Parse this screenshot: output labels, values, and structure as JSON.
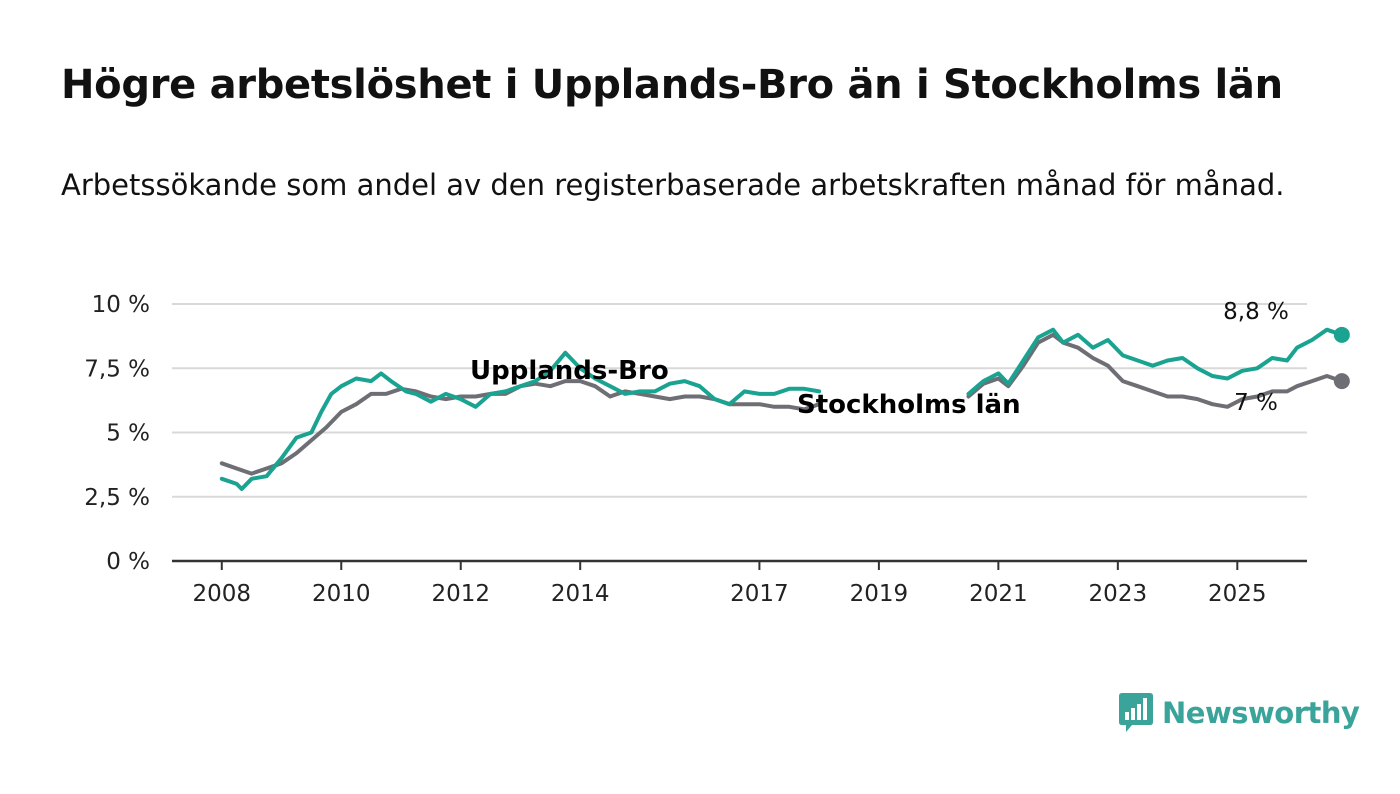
{
  "title": "Högre arbetslöshet i Upplands-Bro än i Stockholms län",
  "subtitle": "Arbetssökande som andel av den registerbaserade arbetskraften månad för månad.",
  "brand": {
    "name": "Newsworthy",
    "icon": "newsworthy-logo-icon",
    "color": "#3aa39a"
  },
  "chart_data": {
    "type": "line",
    "title": "Högre arbetslöshet i Upplands-Bro än i Stockholms län",
    "xlabel": "",
    "ylabel": "",
    "ylim": [
      0,
      10
    ],
    "xlim": [
      "2007-03",
      "2026-03"
    ],
    "grid": true,
    "y_ticks": [
      {
        "value": 0,
        "label": "0 %"
      },
      {
        "value": 2.5,
        "label": "2,5 %"
      },
      {
        "value": 5,
        "label": "5 %"
      },
      {
        "value": 7.5,
        "label": "7,5 %"
      },
      {
        "value": 10,
        "label": "10 %"
      }
    ],
    "x_ticks": [
      {
        "value": "2008-01",
        "label": "2008"
      },
      {
        "value": "2010-01",
        "label": "2010"
      },
      {
        "value": "2012-01",
        "label": "2012"
      },
      {
        "value": "2014-01",
        "label": "2014"
      },
      {
        "value": "2017-01",
        "label": "2017"
      },
      {
        "value": "2019-01",
        "label": "2019"
      },
      {
        "value": "2021-01",
        "label": "2021"
      },
      {
        "value": "2023-01",
        "label": "2023"
      },
      {
        "value": "2025-01",
        "label": "2025"
      }
    ],
    "series": [
      {
        "name": "Upplands-Bro",
        "color": "#1aa391",
        "end_label": "8,8 %",
        "segments": [
          [
            [
              "2008-01",
              3.2
            ],
            [
              "2008-04",
              3.0
            ],
            [
              "2008-05",
              2.8
            ],
            [
              "2008-07",
              3.2
            ],
            [
              "2008-10",
              3.3
            ],
            [
              "2009-01",
              4.0
            ],
            [
              "2009-04",
              4.8
            ],
            [
              "2009-07",
              5.0
            ],
            [
              "2009-09",
              5.8
            ],
            [
              "2009-11",
              6.5
            ],
            [
              "2010-01",
              6.8
            ],
            [
              "2010-04",
              7.1
            ],
            [
              "2010-07",
              7.0
            ],
            [
              "2010-09",
              7.3
            ],
            [
              "2010-11",
              7.0
            ],
            [
              "2011-02",
              6.6
            ],
            [
              "2011-04",
              6.5
            ],
            [
              "2011-07",
              6.2
            ],
            [
              "2011-10",
              6.5
            ],
            [
              "2012-01",
              6.3
            ],
            [
              "2012-04",
              6.0
            ],
            [
              "2012-07",
              6.5
            ],
            [
              "2012-10",
              6.6
            ],
            [
              "2013-01",
              6.8
            ],
            [
              "2013-04",
              7.0
            ],
            [
              "2013-07",
              7.4
            ],
            [
              "2013-10",
              8.1
            ],
            [
              "2014-01",
              7.5
            ],
            [
              "2014-04",
              7.1
            ],
            [
              "2014-07",
              6.8
            ],
            [
              "2014-10",
              6.5
            ],
            [
              "2015-01",
              6.6
            ],
            [
              "2015-04",
              6.6
            ],
            [
              "2015-07",
              6.9
            ],
            [
              "2015-10",
              7.0
            ],
            [
              "2016-01",
              6.8
            ],
            [
              "2016-04",
              6.3
            ],
            [
              "2016-07",
              6.1
            ],
            [
              "2016-10",
              6.6
            ],
            [
              "2017-01",
              6.5
            ],
            [
              "2017-04",
              6.5
            ],
            [
              "2017-07",
              6.7
            ],
            [
              "2017-10",
              6.7
            ],
            [
              "2018-01",
              6.6
            ]
          ],
          [
            [
              "2020-07",
              6.5
            ],
            [
              "2020-10",
              7.0
            ],
            [
              "2021-01",
              7.3
            ],
            [
              "2021-03",
              6.9
            ],
            [
              "2021-06",
              7.8
            ],
            [
              "2021-09",
              8.7
            ],
            [
              "2021-12",
              9.0
            ],
            [
              "2022-02",
              8.5
            ],
            [
              "2022-05",
              8.8
            ],
            [
              "2022-08",
              8.3
            ],
            [
              "2022-11",
              8.6
            ],
            [
              "2023-02",
              8.0
            ],
            [
              "2023-05",
              7.8
            ],
            [
              "2023-08",
              7.6
            ],
            [
              "2023-11",
              7.8
            ],
            [
              "2024-02",
              7.9
            ],
            [
              "2024-05",
              7.5
            ],
            [
              "2024-08",
              7.2
            ],
            [
              "2024-11",
              7.1
            ],
            [
              "2025-02",
              7.4
            ],
            [
              "2025-05",
              7.5
            ],
            [
              "2025-08",
              7.9
            ],
            [
              "2025-11",
              7.8
            ],
            [
              "2026-01",
              8.3
            ],
            [
              "2026-04",
              8.6
            ],
            [
              "2026-07",
              9.0
            ],
            [
              "2026-10",
              8.8
            ]
          ]
        ]
      },
      {
        "name": "Stockholms län",
        "color": "#6e6e75",
        "end_label": "7 %",
        "segments": [
          [
            [
              "2008-01",
              3.8
            ],
            [
              "2008-04",
              3.6
            ],
            [
              "2008-07",
              3.4
            ],
            [
              "2008-10",
              3.6
            ],
            [
              "2009-01",
              3.8
            ],
            [
              "2009-04",
              4.2
            ],
            [
              "2009-07",
              4.7
            ],
            [
              "2009-10",
              5.2
            ],
            [
              "2010-01",
              5.8
            ],
            [
              "2010-04",
              6.1
            ],
            [
              "2010-07",
              6.5
            ],
            [
              "2010-10",
              6.5
            ],
            [
              "2011-01",
              6.7
            ],
            [
              "2011-04",
              6.6
            ],
            [
              "2011-07",
              6.4
            ],
            [
              "2011-10",
              6.3
            ],
            [
              "2012-01",
              6.4
            ],
            [
              "2012-04",
              6.4
            ],
            [
              "2012-07",
              6.5
            ],
            [
              "2012-10",
              6.5
            ],
            [
              "2013-01",
              6.8
            ],
            [
              "2013-04",
              6.9
            ],
            [
              "2013-07",
              6.8
            ],
            [
              "2013-10",
              7.0
            ],
            [
              "2014-01",
              7.0
            ],
            [
              "2014-04",
              6.8
            ],
            [
              "2014-07",
              6.4
            ],
            [
              "2014-10",
              6.6
            ],
            [
              "2015-01",
              6.5
            ],
            [
              "2015-04",
              6.4
            ],
            [
              "2015-07",
              6.3
            ],
            [
              "2015-10",
              6.4
            ],
            [
              "2016-01",
              6.4
            ],
            [
              "2016-04",
              6.3
            ],
            [
              "2016-07",
              6.1
            ],
            [
              "2016-10",
              6.1
            ],
            [
              "2017-01",
              6.1
            ],
            [
              "2017-04",
              6.0
            ],
            [
              "2017-07",
              6.0
            ],
            [
              "2017-10",
              5.9
            ],
            [
              "2018-01",
              6.1
            ]
          ],
          [
            [
              "2020-07",
              6.4
            ],
            [
              "2020-10",
              6.9
            ],
            [
              "2021-01",
              7.1
            ],
            [
              "2021-03",
              6.8
            ],
            [
              "2021-06",
              7.6
            ],
            [
              "2021-09",
              8.5
            ],
            [
              "2021-12",
              8.8
            ],
            [
              "2022-02",
              8.5
            ],
            [
              "2022-05",
              8.3
            ],
            [
              "2022-08",
              7.9
            ],
            [
              "2022-11",
              7.6
            ],
            [
              "2023-02",
              7.0
            ],
            [
              "2023-05",
              6.8
            ],
            [
              "2023-08",
              6.6
            ],
            [
              "2023-11",
              6.4
            ],
            [
              "2024-02",
              6.4
            ],
            [
              "2024-05",
              6.3
            ],
            [
              "2024-08",
              6.1
            ],
            [
              "2024-11",
              6.0
            ],
            [
              "2025-02",
              6.3
            ],
            [
              "2025-05",
              6.4
            ],
            [
              "2025-08",
              6.6
            ],
            [
              "2025-11",
              6.6
            ],
            [
              "2026-01",
              6.8
            ],
            [
              "2026-04",
              7.0
            ],
            [
              "2026-07",
              7.2
            ],
            [
              "2026-10",
              7.0
            ]
          ]
        ]
      }
    ]
  }
}
